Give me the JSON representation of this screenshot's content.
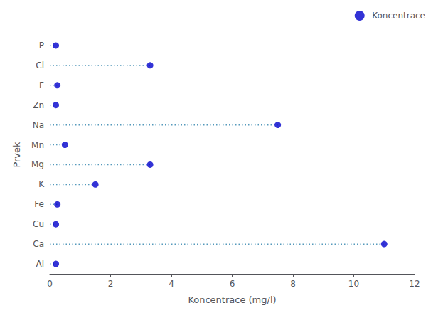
{
  "chart_data": {
    "type": "lollipop",
    "orientation": "horizontal",
    "xlabel": "Koncentrace (mg/l)",
    "ylabel": "Prvek",
    "categories": [
      "P",
      "Cl",
      "F",
      "Zn",
      "Na",
      "Mn",
      "Mg",
      "K",
      "Fe",
      "Cu",
      "Ca",
      "Al"
    ],
    "series": [
      {
        "name": "Koncentrace",
        "type": "scatter",
        "color": "#0000CC",
        "marker": "circle",
        "values": [
          0.2,
          3.3,
          0.25,
          0.2,
          7.5,
          0.5,
          3.3,
          1.5,
          0.25,
          0.2,
          11.0,
          0.2
        ]
      }
    ],
    "color": "#5599BB",
    "line_style": "dotted",
    "xlim": [
      0,
      12
    ],
    "xticks": [
      0,
      2,
      4,
      6,
      8,
      10,
      12
    ],
    "grid": false,
    "legend": "upper right"
  }
}
